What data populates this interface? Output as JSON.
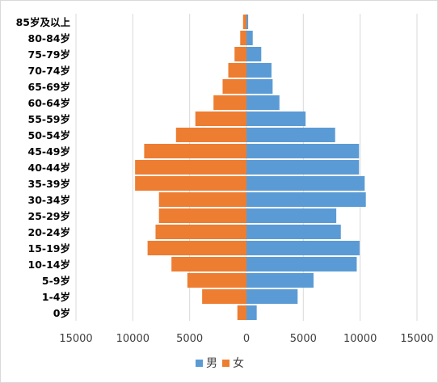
{
  "chart_data": {
    "type": "bar",
    "orientation": "horizontal",
    "categories": [
      "85岁及以上",
      "80-84岁",
      "75-79岁",
      "70-74岁",
      "65-69岁",
      "60-64岁",
      "55-59岁",
      "50-54岁",
      "45-49岁",
      "40-44岁",
      "35-39岁",
      "30-34岁",
      "25-29岁",
      "20-24岁",
      "15-19岁",
      "10-14岁",
      "5-9岁",
      "1-4岁",
      "0岁"
    ],
    "series": [
      {
        "name": "男",
        "color": "#5b9bd5",
        "values": [
          150,
          550,
          1300,
          2200,
          2300,
          2900,
          5200,
          7800,
          9900,
          9900,
          10400,
          10500,
          7900,
          8300,
          9950,
          9700,
          5900,
          4500,
          900
        ]
      },
      {
        "name": "女",
        "color": "#ed7d31",
        "values": [
          300,
          550,
          1050,
          1600,
          2100,
          2900,
          4500,
          6200,
          9000,
          9800,
          9800,
          7700,
          7700,
          8000,
          8700,
          6600,
          5200,
          3900,
          800
        ]
      }
    ],
    "x_tick_labels": [
      "15000",
      "10000",
      "5000",
      "0",
      "5000",
      "10000",
      "15000"
    ],
    "xlim": [
      -15000,
      15000
    ],
    "grid": true,
    "legend_position": "bottom"
  },
  "legend": [
    {
      "label": "男",
      "color": "#5b9bd5"
    },
    {
      "label": "女",
      "color": "#ed7d31"
    }
  ]
}
